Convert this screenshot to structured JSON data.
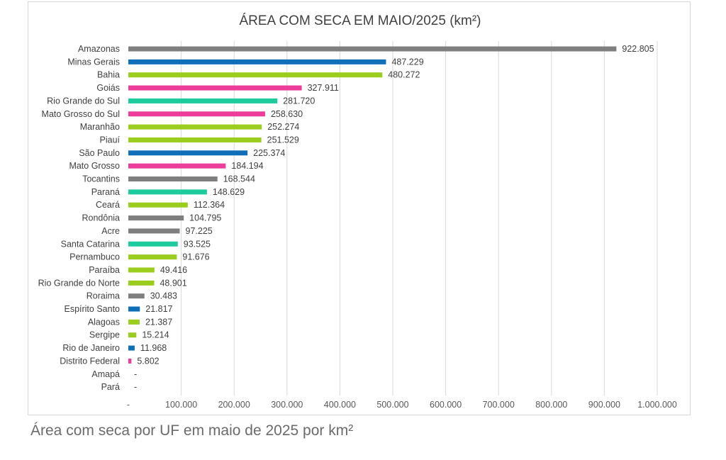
{
  "caption": "Área com seca por UF em maio de 2025 por km²",
  "colors": {
    "gray": "#7f7f7f",
    "blue": "#0f6fb8",
    "green": "#9acd1e",
    "pink": "#ec3d9a",
    "teal": "#1ecb9c",
    "gridline": "#d9d9d9"
  },
  "chart_data": {
    "type": "bar",
    "orientation": "horizontal",
    "title": "ÁREA COM SECA EM MAIO/2025 (km²)",
    "xlabel": "",
    "ylabel": "",
    "xlim": [
      0,
      1000000
    ],
    "xtick_labels": [
      "-",
      "100.000",
      "200.000",
      "300.000",
      "400.000",
      "500.000",
      "600.000",
      "700.000",
      "800.000",
      "900.000",
      "1.000.000"
    ],
    "xtick_values": [
      0,
      100000,
      200000,
      300000,
      400000,
      500000,
      600000,
      700000,
      800000,
      900000,
      1000000
    ],
    "grid": true,
    "legend": "none",
    "categories": [
      "Amazonas",
      "Minas Gerais",
      "Bahia",
      "Goiás",
      "Rio Grande do Sul",
      "Mato Grosso do Sul",
      "Maranhão",
      "Piauí",
      "São Paulo",
      "Mato Grosso",
      "Tocantins",
      "Paraná",
      "Ceará",
      "Rondônia",
      "Acre",
      "Santa Catarina",
      "Pernambuco",
      "Paraíba",
      "Rio Grande do Norte",
      "Roraima",
      "Espírito Santo",
      "Alagoas",
      "Sergipe",
      "Rio de Janeiro",
      "Distrito Federal",
      "Amapá",
      "Pará"
    ],
    "values": [
      922805,
      487229,
      480272,
      327911,
      281720,
      258630,
      252274,
      251529,
      225374,
      184194,
      168544,
      148629,
      112364,
      104795,
      97225,
      93525,
      91676,
      49416,
      48901,
      30483,
      21817,
      21387,
      15214,
      11968,
      5802,
      0,
      0
    ],
    "value_labels": [
      "922.805",
      "487.229",
      "480.272",
      "327.911",
      "281.720",
      "258.630",
      "252.274",
      "251.529",
      "225.374",
      "184.194",
      "168.544",
      "148.629",
      "112.364",
      "104.795",
      "97.225",
      "93.525",
      "91.676",
      "49.416",
      "48.901",
      "30.483",
      "21.817",
      "21.387",
      "15.214",
      "11.968",
      "5.802",
      "-",
      "-"
    ],
    "bar_colors": [
      "gray",
      "blue",
      "green",
      "pink",
      "teal",
      "pink",
      "green",
      "green",
      "blue",
      "pink",
      "gray",
      "teal",
      "green",
      "gray",
      "gray",
      "teal",
      "green",
      "green",
      "green",
      "gray",
      "blue",
      "green",
      "green",
      "blue",
      "pink",
      "gray",
      "gray"
    ]
  }
}
